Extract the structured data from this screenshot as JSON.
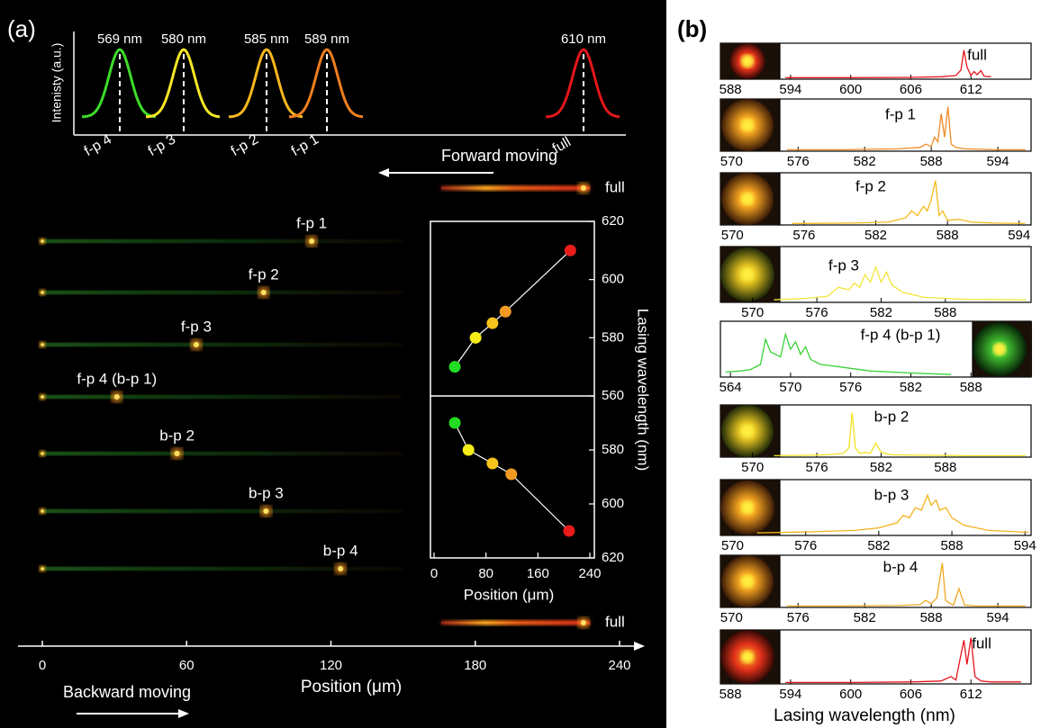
{
  "figure": {
    "panel_a_label": "(a)",
    "panel_b_label": "(b)",
    "intensity_label": "Intenisty (a.u.)",
    "peaks": [
      {
        "wavelength": "569 nm",
        "name": "f-p 4",
        "color": "#3ddc2a"
      },
      {
        "wavelength": "580 nm",
        "name": "f-p 3",
        "color": "#f4e626"
      },
      {
        "wavelength": "585 nm",
        "name": "f-p 2",
        "color": "#f6b81c"
      },
      {
        "wavelength": "589 nm",
        "name": "f-p 1",
        "color": "#ee7f1e"
      },
      {
        "wavelength": "610 nm",
        "name": "full",
        "color": "#e3171b"
      }
    ],
    "forward_label": "Forward moving",
    "backward_label": "Backward moving",
    "strips": [
      {
        "label": "full",
        "position": 225
      },
      {
        "label": "f-p 1",
        "position": 112
      },
      {
        "label": "f-p 2",
        "position": 92
      },
      {
        "label": "f-p 3",
        "position": 64
      },
      {
        "label": "f-p 4 (b-p 1)",
        "position": 31
      },
      {
        "label": "b-p 2",
        "position": 56
      },
      {
        "label": "b-p 3",
        "position": 93
      },
      {
        "label": "b-p 4",
        "position": 124
      },
      {
        "label": "full",
        "position": 225
      }
    ],
    "position_axis": {
      "label": "Position (μm)",
      "xlim": [
        0,
        240
      ],
      "xticks": [
        0,
        60,
        120,
        180,
        240
      ]
    },
    "spectra_x_label": "Lasing wavelength (nm)"
  },
  "chart_data": [
    {
      "type": "scatter",
      "x": [
        32,
        64,
        90,
        110,
        210
      ],
      "values": [
        570,
        580,
        585,
        589,
        610
      ],
      "colors": [
        "#22dd22",
        "#f5ec1a",
        "#f6c21c",
        "#f29a22",
        "#e81c1c"
      ],
      "xlim": [
        0,
        240
      ],
      "ylim": [
        560,
        620
      ],
      "yticks": [
        560,
        580,
        600,
        620
      ],
      "y_label": "Lasing wavelength (nm)"
    },
    {
      "type": "scatter",
      "x": [
        32,
        53,
        90,
        119,
        208
      ],
      "values": [
        570,
        580,
        585,
        589,
        610
      ],
      "colors": [
        "#22dd22",
        "#f5ec1a",
        "#f6c21c",
        "#f29a22",
        "#e81c1c"
      ],
      "xlim": [
        0,
        240
      ],
      "xticks": [
        0,
        80,
        160,
        240
      ],
      "ylim": [
        620,
        560
      ],
      "yticks": [
        580,
        600,
        620
      ],
      "x_label": "Position (μm)"
    },
    {
      "type": "line",
      "label": "full",
      "color": "#e8141c",
      "xlim": [
        587,
        618
      ],
      "xticks": [
        588,
        594,
        600,
        606,
        612
      ],
      "x": [
        593.5,
        600,
        606,
        609,
        610.5,
        611,
        611.3,
        611.6,
        612,
        612.3,
        612.6,
        613,
        613.3,
        614
      ],
      "values": [
        0.05,
        0.05,
        0.06,
        0.08,
        0.12,
        0.3,
        0.95,
        0.4,
        0.12,
        0.25,
        0.15,
        0.28,
        0.1,
        0.08
      ]
    },
    {
      "type": "line",
      "label": "f-p 1",
      "color": "#f08a24",
      "xlim": [
        569,
        597
      ],
      "xticks": [
        570,
        576,
        582,
        588,
        594
      ],
      "x": [
        575,
        580,
        585,
        587,
        587.5,
        588,
        588.3,
        588.6,
        588.9,
        589.2,
        589.5,
        589.8,
        590.2,
        591,
        594,
        596.5
      ],
      "values": [
        0.03,
        0.03,
        0.05,
        0.08,
        0.15,
        0.1,
        0.3,
        0.2,
        0.8,
        0.3,
        0.95,
        0.15,
        0.08,
        0.05,
        0.03,
        0.03
      ]
    },
    {
      "type": "line",
      "label": "f-p 2",
      "color": "#f5b81a",
      "xlim": [
        569,
        595
      ],
      "xticks": [
        570,
        576,
        582,
        588,
        594
      ],
      "x": [
        575,
        580,
        583,
        584.5,
        585,
        585.5,
        586,
        586.3,
        586.6,
        587,
        587.3,
        587.6,
        588,
        589,
        590,
        592,
        594.5
      ],
      "values": [
        0.03,
        0.04,
        0.06,
        0.15,
        0.3,
        0.2,
        0.4,
        0.3,
        0.5,
        0.95,
        0.2,
        0.3,
        0.1,
        0.12,
        0.06,
        0.04,
        0.03
      ]
    },
    {
      "type": "line",
      "label": "f-p 3",
      "color": "#f2e63a",
      "xlim": [
        567,
        596
      ],
      "xticks": [
        570,
        576,
        582,
        588
      ],
      "x": [
        572,
        575,
        577,
        578,
        579,
        579.5,
        580,
        580.5,
        581,
        581.5,
        582,
        582.5,
        583,
        584,
        586,
        590,
        595.5
      ],
      "values": [
        0.05,
        0.08,
        0.12,
        0.3,
        0.25,
        0.38,
        0.3,
        0.55,
        0.4,
        0.7,
        0.4,
        0.6,
        0.35,
        0.2,
        0.1,
        0.06,
        0.05
      ]
    },
    {
      "type": "line",
      "label": "f-p 4 (b-p 1)",
      "color": "#3ad23a",
      "xlim": [
        563,
        594
      ],
      "xticks": [
        564,
        570,
        576,
        582,
        588
      ],
      "x": [
        563.5,
        565,
        566,
        567,
        567.5,
        568,
        569,
        569.5,
        570,
        570.5,
        571,
        571.5,
        572,
        573,
        575,
        578,
        582,
        586
      ],
      "values": [
        0.1,
        0.12,
        0.15,
        0.25,
        0.75,
        0.5,
        0.4,
        0.85,
        0.55,
        0.7,
        0.45,
        0.6,
        0.35,
        0.25,
        0.2,
        0.12,
        0.08,
        0.05
      ]
    },
    {
      "type": "line",
      "label": "b-p 2",
      "color": "#f2e320",
      "xlim": [
        567,
        596
      ],
      "xticks": [
        570,
        576,
        582,
        588
      ],
      "x": [
        572,
        575,
        577,
        578.5,
        579,
        579.3,
        579.6,
        580,
        580.5,
        581,
        581.5,
        582,
        583,
        586,
        590,
        595.5
      ],
      "values": [
        0.03,
        0.04,
        0.05,
        0.08,
        0.2,
        0.95,
        0.2,
        0.08,
        0.1,
        0.08,
        0.3,
        0.1,
        0.05,
        0.04,
        0.03,
        0.03
      ]
    },
    {
      "type": "line",
      "label": "b-p 3",
      "color": "#f2b21c",
      "xlim": [
        569,
        594.5
      ],
      "xticks": [
        570,
        576,
        582,
        588,
        594
      ],
      "x": [
        572,
        576,
        580,
        582,
        583.5,
        584,
        584.5,
        585,
        585.5,
        586,
        586.3,
        586.7,
        587,
        587.5,
        588,
        589,
        591,
        594.3
      ],
      "values": [
        0.05,
        0.07,
        0.1,
        0.15,
        0.25,
        0.4,
        0.35,
        0.55,
        0.5,
        0.8,
        0.6,
        0.7,
        0.5,
        0.55,
        0.35,
        0.2,
        0.1,
        0.06
      ]
    },
    {
      "type": "line",
      "label": "b-p 4",
      "color": "#f0a820",
      "xlim": [
        569,
        597
      ],
      "xticks": [
        570,
        576,
        582,
        588,
        594
      ],
      "x": [
        575,
        580,
        585,
        587,
        587.5,
        588,
        588.5,
        589,
        589.3,
        589.6,
        590,
        590.5,
        591,
        592,
        596.5
      ],
      "values": [
        0.03,
        0.03,
        0.04,
        0.06,
        0.15,
        0.08,
        0.2,
        0.95,
        0.15,
        0.1,
        0.05,
        0.4,
        0.05,
        0.03,
        0.03
      ]
    },
    {
      "type": "line",
      "label": "full",
      "color": "#e8141c",
      "xlim": [
        587,
        618
      ],
      "xticks": [
        588,
        594,
        600,
        606,
        612
      ],
      "x": [
        593.5,
        600,
        606,
        609,
        610,
        610.5,
        611,
        611.3,
        611.6,
        612,
        612.4,
        613,
        614,
        617
      ],
      "values": [
        0.03,
        0.03,
        0.04,
        0.06,
        0.15,
        0.08,
        0.6,
        0.9,
        0.4,
        0.95,
        0.15,
        0.06,
        0.04,
        0.04
      ]
    }
  ]
}
